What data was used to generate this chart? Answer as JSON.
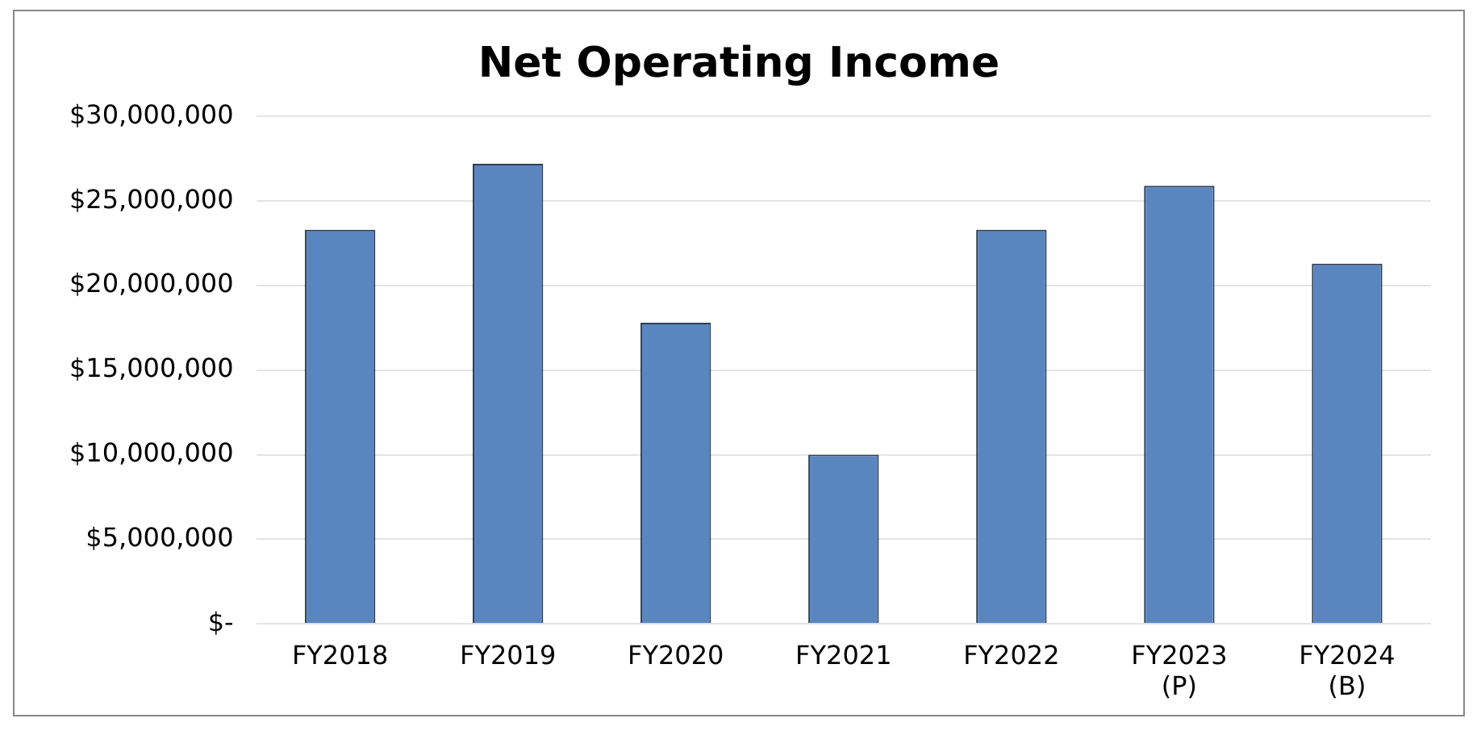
{
  "chart_data": {
    "type": "bar",
    "title": "Net Operating Income",
    "categories": [
      "FY2018",
      "FY2019",
      "FY2020",
      "FY2021",
      "FY2022",
      "FY2023 (P)",
      "FY2024 (B)"
    ],
    "values": [
      23300000,
      27200000,
      17800000,
      10000000,
      23300000,
      25900000,
      21300000
    ],
    "color": "#5a86c0",
    "ylim": [
      0,
      30000000
    ],
    "yticks": [
      {
        "value": 0,
        "label": "$-"
      },
      {
        "value": 5000000,
        "label": "$5,000,000"
      },
      {
        "value": 10000000,
        "label": "$10,000,000"
      },
      {
        "value": 15000000,
        "label": "$15,000,000"
      },
      {
        "value": 20000000,
        "label": "$20,000,000"
      },
      {
        "value": 25000000,
        "label": "$25,000,000"
      },
      {
        "value": 30000000,
        "label": "$30,000,000"
      }
    ],
    "grid": "y"
  }
}
